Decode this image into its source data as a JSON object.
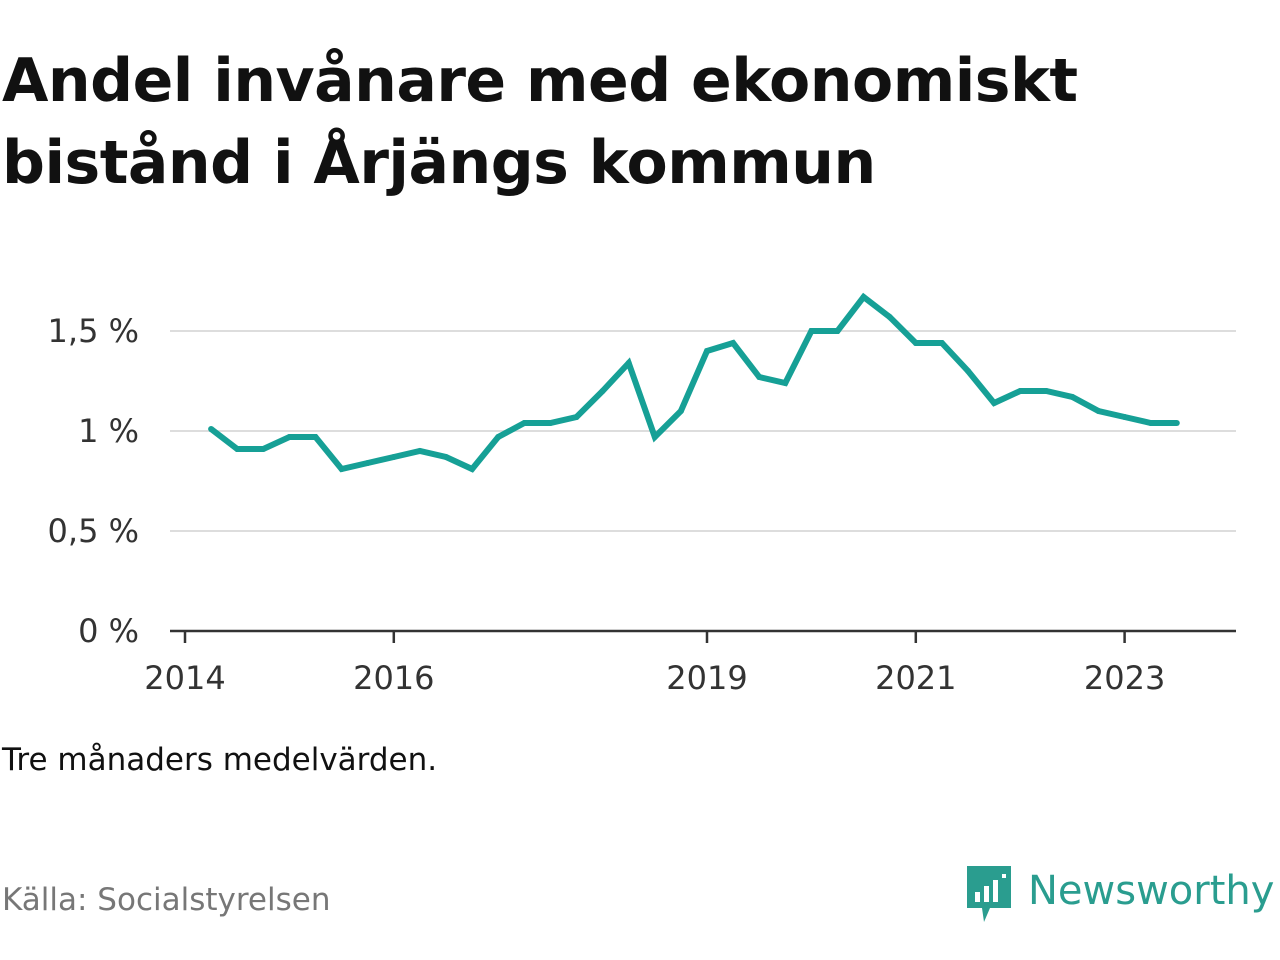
{
  "title": "Andel invånare med ekonomiskt bistånd i Årjängs kommun",
  "note": "Tre månaders medelvärden.",
  "source": "Källa: Socialstyrelsen",
  "brand": {
    "name": "Newsworthy",
    "icon": "newsworthy-logo-icon",
    "color": "#2a9d8f"
  },
  "colors": {
    "line": "#16a096",
    "grid": "#dddddd",
    "axis": "#333333"
  },
  "chart_data": {
    "type": "line",
    "title": "Andel invånare med ekonomiskt bistånd i Årjängs kommun",
    "xlabel": "",
    "ylabel": "",
    "ylim": [
      0,
      1.5
    ],
    "y_ticks": [
      {
        "value": 0,
        "label": "0 %"
      },
      {
        "value": 0.5,
        "label": "0,5 %"
      },
      {
        "value": 1,
        "label": "1 %"
      },
      {
        "value": 1.5,
        "label": "1,5 %"
      }
    ],
    "x_ticks": [
      {
        "value": "2014-01",
        "label": "2014"
      },
      {
        "value": "2016-01",
        "label": "2016"
      },
      {
        "value": "2019-01",
        "label": "2019"
      },
      {
        "value": "2021-01",
        "label": "2021"
      },
      {
        "value": "2023-01",
        "label": "2023"
      }
    ],
    "grid": true,
    "legend": "none",
    "x": [
      "2014-04",
      "2014-07",
      "2014-10",
      "2015-01",
      "2015-04",
      "2015-07",
      "2015-10",
      "2016-01",
      "2016-04",
      "2016-07",
      "2016-10",
      "2017-01",
      "2017-04",
      "2017-07",
      "2017-10",
      "2018-01",
      "2018-04",
      "2018-07",
      "2018-10",
      "2019-01",
      "2019-04",
      "2019-07",
      "2019-10",
      "2020-01",
      "2020-04",
      "2020-07",
      "2020-10",
      "2021-01",
      "2021-04",
      "2021-07",
      "2021-10",
      "2022-01",
      "2022-04",
      "2022-07",
      "2022-10",
      "2023-01",
      "2023-04",
      "2023-07"
    ],
    "series": [
      {
        "values": [
          1.01,
          0.91,
          0.91,
          0.97,
          0.97,
          0.81,
          0.84,
          0.87,
          0.9,
          0.87,
          0.81,
          0.97,
          1.04,
          1.04,
          1.07,
          1.2,
          1.34,
          0.97,
          1.1,
          1.4,
          1.44,
          1.27,
          1.24,
          1.5,
          1.5,
          1.67,
          1.57,
          1.44,
          1.44,
          1.3,
          1.14,
          1.2,
          1.2,
          1.17,
          1.1,
          1.07,
          1.04,
          1.04
        ]
      }
    ]
  }
}
